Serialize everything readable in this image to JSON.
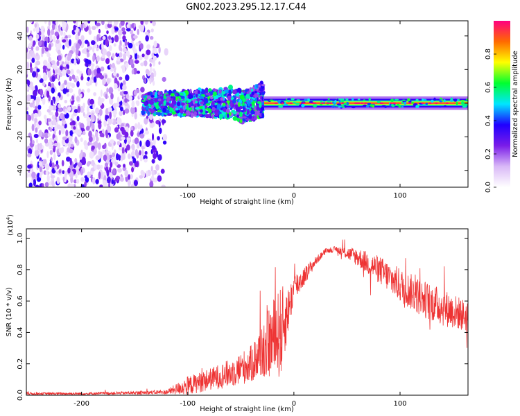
{
  "figure": {
    "title": "GN02.2023.295.12.17.C44"
  },
  "chart_data": [
    {
      "type": "heatmap",
      "title": "",
      "xlabel": "Height of straight line (km)",
      "ylabel": "Frequency (Hz)",
      "xlim": [
        -252,
        164
      ],
      "ylim": [
        -50,
        49
      ],
      "xticks": [
        -200,
        -100,
        0,
        100
      ],
      "yticks": [
        -40,
        -20,
        0,
        20,
        40
      ],
      "grid": false,
      "colorbar": {
        "label": "Normalized spectral amplitude",
        "range": [
          0.0,
          1.0
        ],
        "ticks": [
          0.0,
          0.2,
          0.4,
          0.6,
          0.8
        ],
        "tick_labels": [
          "0.0",
          "0.2",
          "0.4",
          "0.6",
          "0.8"
        ],
        "colormap": [
          "#ffffff",
          "#d9b8f7",
          "#7a1ce8",
          "#1f00ff",
          "#00e6ff",
          "#00ff30",
          "#ffff00",
          "#ff6a00",
          "#ff0080"
        ]
      },
      "regions": [
        {
          "x_range": [
            -252,
            -125
          ],
          "freq_range": [
            -50,
            49
          ],
          "amplitude": "low-noise",
          "description_level": 0.05
        },
        {
          "x_range": [
            -140,
            -28
          ],
          "freq_range": [
            -10,
            10
          ],
          "amplitude": "mid",
          "description_level": 0.35
        },
        {
          "x_range": [
            -28,
            164
          ],
          "freq_range": [
            -2,
            2
          ],
          "amplitude": "high",
          "description_level": 0.95
        }
      ]
    },
    {
      "type": "line",
      "title": "",
      "xlabel": "Height of straight line (km)",
      "ylabel": "SNR (10 * v/v)",
      "scale_label": "(x10",
      "scale_exponent": "4",
      "scale_close": ")",
      "xlim": [
        -252,
        164
      ],
      "ylim": [
        0,
        1.06
      ],
      "xticks": [
        -200,
        -100,
        0,
        100
      ],
      "yticks": [
        0.0,
        0.2,
        0.4,
        0.6,
        0.8,
        1.0
      ],
      "ytick_labels": [
        "0.0",
        "0.2",
        "0.4",
        "0.6",
        "0.8",
        "1.0"
      ],
      "grid": false,
      "series": [
        {
          "color": "#ee3333",
          "envelope": {
            "x": [
              -252,
              -200,
              -150,
              -120,
              -100,
              -80,
              -60,
              -40,
              -30,
              -20,
              -12,
              -5,
              0,
              10,
              20,
              30,
              40,
              60,
              80,
              100,
              120,
              140,
              164
            ],
            "base": [
              0.01,
              0.01,
              0.015,
              0.02,
              0.06,
              0.1,
              0.14,
              0.2,
              0.28,
              0.36,
              0.4,
              0.55,
              0.68,
              0.76,
              0.85,
              0.92,
              0.93,
              0.88,
              0.8,
              0.7,
              0.62,
              0.56,
              0.5
            ],
            "noise": [
              0.008,
              0.008,
              0.01,
              0.015,
              0.06,
              0.07,
              0.09,
              0.12,
              0.18,
              0.25,
              0.3,
              0.14,
              0.1,
              0.06,
              0.03,
              0.015,
              0.02,
              0.06,
              0.09,
              0.11,
              0.12,
              0.12,
              0.1
            ]
          }
        }
      ]
    }
  ]
}
